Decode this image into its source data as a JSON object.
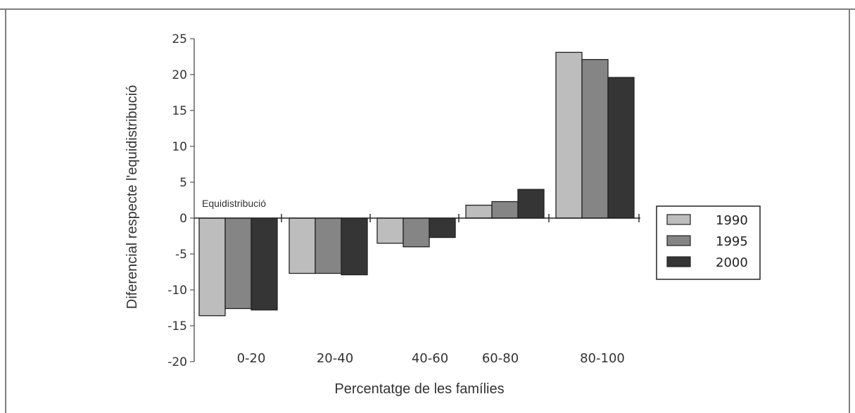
{
  "chart_data": {
    "type": "bar",
    "title": "",
    "xlabel": "Percentatge de les famílies",
    "ylabel": "Diferencial respecte l'equidistribució",
    "annotation": "Equidistribució",
    "categories": [
      "0-20",
      "20-40",
      "40-60",
      "60-80",
      "80-100"
    ],
    "ylim": [
      -20,
      25
    ],
    "yticks": [
      "25",
      "20",
      "15",
      "10",
      "5",
      "0",
      "-5",
      "-10",
      "-15",
      "-20"
    ],
    "ytick_values": [
      25,
      20,
      15,
      10,
      5,
      0,
      -5,
      -10,
      -15,
      -20
    ],
    "series": [
      {
        "name": "1990",
        "color": "#bdbdbd",
        "values": [
          -13.6,
          -7.7,
          -3.5,
          1.8,
          23.1
        ]
      },
      {
        "name": "1995",
        "color": "#858585",
        "values": [
          -12.6,
          -7.7,
          -4.0,
          2.3,
          22.1
        ]
      },
      {
        "name": "2000",
        "color": "#353535",
        "values": [
          -12.8,
          -7.9,
          -2.7,
          4.0,
          19.6
        ]
      }
    ],
    "legend_position": "right",
    "grid": false
  }
}
